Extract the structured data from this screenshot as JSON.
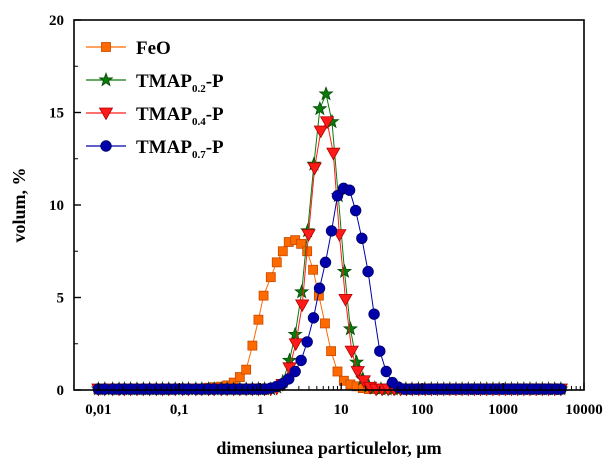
{
  "chart_data": {
    "type": "scatter",
    "xlabel": "dimensiunea particulelor, µm",
    "ylabel": "volum, %",
    "xscale": "log",
    "xlim": [
      0.005,
      10000
    ],
    "ylim": [
      0,
      20
    ],
    "xticks": [
      0.01,
      0.1,
      1,
      10,
      100,
      1000,
      10000
    ],
    "xtick_labels": [
      "0,01",
      "0,1",
      "1",
      "10",
      "100",
      "1000",
      "10000"
    ],
    "yticks": [
      0,
      5,
      10,
      15,
      20
    ],
    "ytick_labels": [
      "0",
      "5",
      "10",
      "15",
      "20"
    ],
    "legend_position": "top-left",
    "series": [
      {
        "name": "FeO",
        "name_main": "FeO",
        "name_sub": "",
        "name_suffix": "",
        "marker": "square",
        "color": "#ff6a00",
        "edge": "#c64a00",
        "line": "#ff6a00",
        "x": [
          0.01,
          0.012,
          0.015,
          0.018,
          0.021,
          0.025,
          0.03,
          0.036,
          0.043,
          0.052,
          0.062,
          0.074,
          0.089,
          0.11,
          0.13,
          0.16,
          0.19,
          0.23,
          0.27,
          0.33,
          0.39,
          0.47,
          0.56,
          0.67,
          0.8,
          0.95,
          1.1,
          1.35,
          1.6,
          1.9,
          2.25,
          2.7,
          3.2,
          3.8,
          4.5,
          5.3,
          6.3,
          7.5,
          9,
          10.8,
          13,
          15.5,
          18.5,
          22,
          26,
          31,
          37,
          44,
          53,
          63,
          75,
          90,
          108,
          130,
          155,
          185,
          220,
          262,
          312,
          372,
          443,
          528,
          629,
          750,
          894,
          1066,
          1270,
          1514,
          1805,
          2151,
          2564,
          3056,
          3643,
          4342,
          5176
        ],
        "y": [
          0.05,
          0.05,
          0.05,
          0.05,
          0.05,
          0.05,
          0.05,
          0.05,
          0.05,
          0.05,
          0.05,
          0.05,
          0.05,
          0.05,
          0.05,
          0.05,
          0.08,
          0.12,
          0.15,
          0.18,
          0.25,
          0.4,
          0.7,
          1.1,
          2.4,
          3.8,
          5.1,
          6.1,
          6.9,
          7.5,
          8,
          8.1,
          7.9,
          7.5,
          6.5,
          5.1,
          3.6,
          2.1,
          1,
          0.5,
          0.3,
          0.2,
          0.1,
          0.05,
          0.05,
          0.05,
          0.05,
          0.05,
          0.05,
          0.05,
          0.05,
          0.05,
          0.05,
          0.05,
          0.05,
          0.05,
          0.05,
          0.05,
          0.05,
          0.05,
          0.05,
          0.05,
          0.05,
          0.05,
          0.05,
          0.05,
          0.05,
          0.05,
          0.05,
          0.05,
          0.05,
          0.05,
          0.05,
          0.05,
          0.05
        ]
      },
      {
        "name": "TMAP0.2-P",
        "name_main": "TMAP",
        "name_sub": "0.2",
        "name_suffix": "-P",
        "marker": "star",
        "color": "#0a7a0a",
        "edge": "#064a06",
        "line": "#0a7a0a",
        "x": [
          0.01,
          0.012,
          0.015,
          0.018,
          0.021,
          0.025,
          0.03,
          0.036,
          0.043,
          0.052,
          0.062,
          0.074,
          0.089,
          0.11,
          0.13,
          0.16,
          0.19,
          0.23,
          0.27,
          0.33,
          0.39,
          0.47,
          0.56,
          0.67,
          0.8,
          0.95,
          1.13,
          1.35,
          1.6,
          1.9,
          2.3,
          2.7,
          3.25,
          3.85,
          4.6,
          5.45,
          6.5,
          7.7,
          9.2,
          11,
          13,
          15.5,
          18.5,
          22,
          26,
          31,
          37,
          44,
          53,
          63,
          75,
          90,
          108,
          130,
          155,
          185,
          220,
          262,
          312,
          372,
          443,
          528,
          629,
          750,
          894,
          1066,
          1270,
          1514,
          1805,
          2151,
          2564,
          3056,
          3643,
          4342,
          5176
        ],
        "y": [
          0.05,
          0.05,
          0.05,
          0.05,
          0.05,
          0.05,
          0.05,
          0.05,
          0.05,
          0.05,
          0.05,
          0.05,
          0.05,
          0.05,
          0.05,
          0.05,
          0.05,
          0.05,
          0.05,
          0.05,
          0.05,
          0.05,
          0.05,
          0.05,
          0.05,
          0.05,
          0.05,
          0.05,
          0.15,
          0.45,
          1.6,
          3,
          5.3,
          8.6,
          12.2,
          15.2,
          16,
          14.5,
          10.5,
          6.4,
          3.3,
          1.5,
          0.6,
          0.2,
          0.1,
          0.05,
          0.05,
          0.05,
          0.05,
          0.05,
          0.05,
          0.05,
          0.05,
          0.05,
          0.05,
          0.05,
          0.05,
          0.05,
          0.05,
          0.05,
          0.05,
          0.05,
          0.05,
          0.05,
          0.05,
          0.05,
          0.05,
          0.05,
          0.05,
          0.05,
          0.05,
          0.05,
          0.05,
          0.05,
          0.05
        ]
      },
      {
        "name": "TMAP0.4-P",
        "name_main": "TMAP",
        "name_sub": "0.4",
        "name_suffix": "-P",
        "marker": "triangle-down",
        "color": "#ff1a1a",
        "edge": "#b00000",
        "line": "#ff1a1a",
        "x": [
          0.01,
          0.012,
          0.015,
          0.018,
          0.021,
          0.025,
          0.03,
          0.036,
          0.043,
          0.052,
          0.062,
          0.074,
          0.089,
          0.11,
          0.13,
          0.16,
          0.19,
          0.23,
          0.27,
          0.33,
          0.39,
          0.47,
          0.56,
          0.67,
          0.8,
          0.95,
          1.13,
          1.35,
          1.6,
          1.9,
          2.3,
          2.75,
          3.3,
          3.95,
          4.7,
          5.6,
          6.7,
          8,
          9.5,
          11.3,
          13.5,
          16,
          19,
          22.7,
          27,
          32,
          38,
          45,
          54,
          64,
          76,
          91,
          109,
          130,
          155,
          185,
          220,
          262,
          312,
          372,
          443,
          528,
          629,
          750,
          894,
          1066,
          1270,
          1514,
          1805,
          2151,
          2564,
          3056,
          3643,
          4342,
          5176
        ],
        "y": [
          0.05,
          0.05,
          0.05,
          0.05,
          0.05,
          0.05,
          0.05,
          0.05,
          0.05,
          0.05,
          0.05,
          0.05,
          0.05,
          0.05,
          0.05,
          0.05,
          0.05,
          0.05,
          0.05,
          0.05,
          0.05,
          0.05,
          0.05,
          0.05,
          0.05,
          0.05,
          0.05,
          0.05,
          0.1,
          0.3,
          1.2,
          2.5,
          4.6,
          8.4,
          12,
          14,
          14.5,
          12.8,
          8.4,
          4.9,
          2.1,
          1,
          0.5,
          0.15,
          0.05,
          0.05,
          0.05,
          0.05,
          0.05,
          0.05,
          0.05,
          0.05,
          0.05,
          0.05,
          0.05,
          0.05,
          0.05,
          0.05,
          0.05,
          0.05,
          0.05,
          0.05,
          0.05,
          0.05,
          0.05,
          0.05,
          0.05,
          0.05,
          0.05,
          0.05,
          0.05,
          0.05,
          0.05,
          0.05,
          0.05
        ]
      },
      {
        "name": "TMAP0.7-P",
        "name_main": "TMAP",
        "name_sub": "0.7",
        "name_suffix": "-P",
        "marker": "circle",
        "color": "#0000aa",
        "edge": "#00006a",
        "line": "#0000aa",
        "x": [
          0.01,
          0.012,
          0.015,
          0.018,
          0.021,
          0.025,
          0.03,
          0.036,
          0.043,
          0.052,
          0.062,
          0.074,
          0.089,
          0.11,
          0.13,
          0.16,
          0.19,
          0.23,
          0.27,
          0.33,
          0.39,
          0.47,
          0.56,
          0.67,
          0.8,
          0.95,
          1.13,
          1.35,
          1.6,
          1.9,
          2.25,
          2.7,
          3.2,
          3.8,
          4.55,
          5.4,
          6.4,
          7.6,
          9,
          10.7,
          12.7,
          15.1,
          18,
          21.5,
          25.5,
          30,
          36,
          43,
          51,
          61,
          72,
          86,
          102,
          121,
          144,
          172,
          204,
          243,
          289,
          344,
          409,
          486,
          578,
          688,
          818,
          973,
          1157,
          1376,
          1636,
          1946,
          2314,
          2752,
          3273,
          3892,
          4628,
          5200
        ],
        "y": [
          0.05,
          0.05,
          0.05,
          0.05,
          0.05,
          0.05,
          0.05,
          0.05,
          0.05,
          0.05,
          0.05,
          0.05,
          0.05,
          0.05,
          0.05,
          0.05,
          0.05,
          0.05,
          0.05,
          0.05,
          0.05,
          0.05,
          0.05,
          0.05,
          0.05,
          0.05,
          0.05,
          0.1,
          0.2,
          0.35,
          0.6,
          1,
          1.6,
          2.6,
          3.9,
          5.5,
          6.9,
          8.6,
          10.5,
          10.9,
          10.8,
          9.7,
          8.2,
          6.4,
          4.1,
          2.1,
          1,
          0.4,
          0.15,
          0.05,
          0.05,
          0.05,
          0.05,
          0.05,
          0.05,
          0.05,
          0.05,
          0.05,
          0.05,
          0.05,
          0.05,
          0.05,
          0.05,
          0.05,
          0.05,
          0.05,
          0.05,
          0.05,
          0.05,
          0.05,
          0.05,
          0.05,
          0.05,
          0.05,
          0.05,
          0.05
        ]
      }
    ]
  }
}
